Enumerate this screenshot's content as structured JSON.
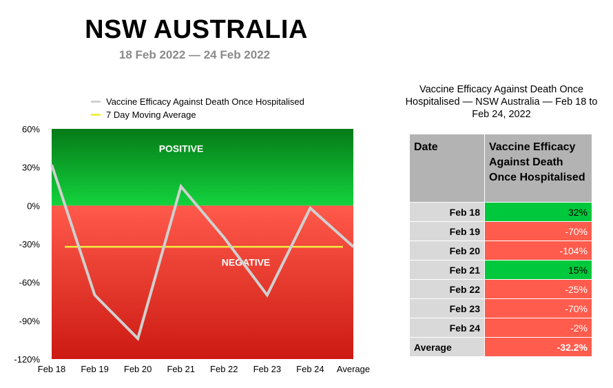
{
  "header": {
    "title": "NSW AUSTRALIA",
    "subtitle": "18 Feb 2022 — 24 Feb 2022"
  },
  "chart_data": {
    "type": "line",
    "categories": [
      "Feb 18",
      "Feb 19",
      "Feb 20",
      "Feb 21",
      "Feb 22",
      "Feb 23",
      "Feb 24",
      "Average"
    ],
    "series": [
      {
        "name": "Vaccine Efficacy Against Death Once Hospitalised",
        "values": [
          32,
          -70,
          -104,
          15,
          -25,
          -70,
          -2,
          -32.2
        ],
        "color": "#d0d0d0"
      },
      {
        "name": "7 Day Moving Average",
        "values": [
          -32.2,
          -32.2,
          -32.2,
          -32.2,
          -32.2,
          -32.2,
          -32.2,
          -32.2
        ],
        "color": "#f0f040"
      }
    ],
    "ylim": [
      -120,
      60
    ],
    "yticks": [
      60,
      30,
      0,
      -30,
      -60,
      -90,
      -120
    ],
    "ytick_labels": [
      "60%",
      "30%",
      "0%",
      "-30%",
      "-60%",
      "-90%",
      "-120%"
    ],
    "bands": [
      {
        "label": "POSITIVE",
        "from": 0,
        "to": 60,
        "color_top": "#057a17",
        "color_bottom": "#13d33d"
      },
      {
        "label": "NEGATIVE",
        "from": -120,
        "to": 0,
        "color_top": "#ff5a4b",
        "color_bottom": "#cc1a12"
      }
    ],
    "legend_position": "top-left"
  },
  "table": {
    "title": "Vaccine Efficacy Against Death Once Hospitalised — NSW Australia — Feb 18 to Feb 24, 2022",
    "headers": [
      "Date",
      "Vaccine Efficacy Against Death Once Hospitalised"
    ],
    "rows": [
      {
        "date": "Feb 18",
        "value": "32%"
      },
      {
        "date": "Feb 19",
        "value": "-70%"
      },
      {
        "date": "Feb 20",
        "value": "-104%"
      },
      {
        "date": "Feb 21",
        "value": "15%"
      },
      {
        "date": "Feb 22",
        "value": "-25%"
      },
      {
        "date": "Feb 23",
        "value": "-70%"
      },
      {
        "date": "Feb 24",
        "value": "-2%"
      }
    ],
    "average": {
      "label": "Average",
      "value": "-32.2%"
    },
    "colors": {
      "positive": "#00c83c",
      "negative": "#ff5c4d"
    }
  }
}
